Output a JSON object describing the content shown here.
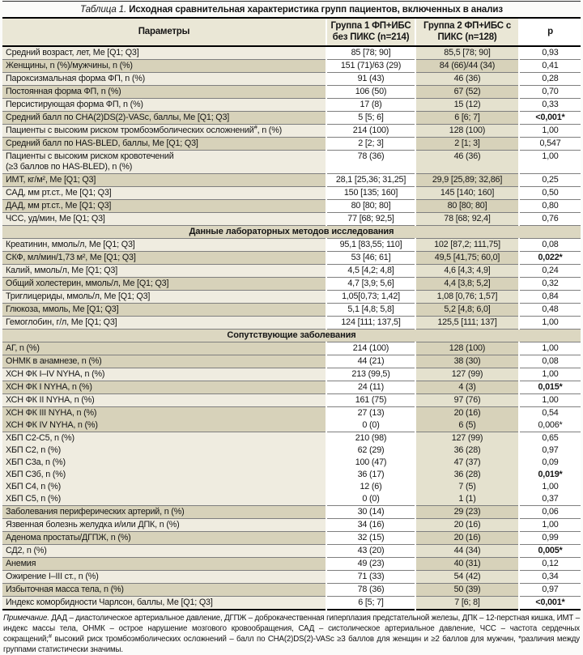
{
  "title": {
    "prefix": "Таблица 1.",
    "text": " Исходная сравнительная характеристика групп пациентов, включенных в анализ"
  },
  "columns": [
    "Параметры",
    "Группа 1 ФП+ИБС без ПИКС (n=214)",
    "Группа 2 ФП+ИБС с ПИКС (n=128)",
    "p"
  ],
  "colors": {
    "stripe_dark": "#d7d2ba",
    "stripe_light": "#efece0",
    "group2_dark": "#d7d2ba",
    "group2_light": "#e4e1ce",
    "header_bg": "#eae7d6",
    "section_bg": "#dcd7c1",
    "rule_gray": "#7f7f7f",
    "rule_black": "#000000"
  },
  "rows": [
    {
      "type": "data",
      "label": "Средний возраст, лет, Ме [Q1; Q3]",
      "g1": "85 [78; 90]",
      "g2": "85,5 [78; 90]",
      "p": "0,93",
      "shade": "light"
    },
    {
      "type": "data",
      "label": "Женщины, n (%)/мужчины, n (%)",
      "g1": "151 (71)/63 (29)",
      "g2": "84 (66)/44 (34)",
      "p": "0,41",
      "shade": "dark"
    },
    {
      "type": "data",
      "label": "Пароксизмальная форма ФП, n (%)",
      "g1": "91 (43)",
      "g2": "46 (36)",
      "p": "0,28",
      "shade": "light"
    },
    {
      "type": "data",
      "label": "Постоянная форма ФП, n (%)",
      "g1": "106 (50)",
      "g2": "67 (52)",
      "p": "0,70",
      "shade": "dark"
    },
    {
      "type": "data",
      "label": "Персистирующая форма ФП, n (%)",
      "g1": "17 (8)",
      "g2": "15 (12)",
      "p": "0,33",
      "shade": "light"
    },
    {
      "type": "data",
      "label": "Средний балл по CHA(2)DS(2)-VASc, баллы, Ме [Q1; Q3]",
      "g1": "5 [5; 6]",
      "g2": "6 [6; 7]",
      "p": "<0,001*",
      "pBold": true,
      "shade": "dark"
    },
    {
      "type": "data",
      "label": "Пациенты с высоким риском тромбоэмболических осложнений",
      "labelSup": "#",
      "labelTail": ", n (%)",
      "g1": "214 (100)",
      "g2": "128 (100)",
      "p": "1,00",
      "shade": "light"
    },
    {
      "type": "data",
      "label": "Средний балл по HAS-BLED, баллы, Ме [Q1; Q3]",
      "g1": "2 [2; 3]",
      "g2": "2 [1; 3]",
      "p": "0,547",
      "shade": "dark"
    },
    {
      "type": "data",
      "label": "Пациенты с высоким риском кровотечений",
      "label2": "(≥3 баллов по HAS-BLED), n (%)",
      "g1": "78 (36)",
      "g2": "46 (36)",
      "p": "1,00",
      "shade": "light",
      "valign": "top"
    },
    {
      "type": "data",
      "label": "ИМТ, кг/м², Ме [Q1; Q3]",
      "g1": "28,1 [25,36; 31,25]",
      "g2": "29,9 [25,89; 32,86]",
      "p": "0,25",
      "shade": "dark"
    },
    {
      "type": "data",
      "label": "САД, мм рт.ст., Ме [Q1; Q3]",
      "g1": "150 [135; 160]",
      "g2": "145 [140; 160]",
      "p": "0,50",
      "shade": "light"
    },
    {
      "type": "data",
      "label": "ДАД, мм рт.ст., Ме [Q1; Q3]",
      "g1": "80 [80; 80]",
      "g2": "80 [80; 80]",
      "p": "0,80",
      "shade": "dark"
    },
    {
      "type": "data",
      "label": "ЧСС, уд/мин, Ме [Q1; Q3]",
      "g1": "77 [68; 92,5]",
      "g2": "78 [68; 92,4]",
      "p": "0,76",
      "shade": "light"
    },
    {
      "type": "section",
      "label": "Данные лабораторных методов исследования"
    },
    {
      "type": "data",
      "label": "Креатинин, ммоль/л, Ме [Q1; Q3]",
      "g1": "95,1 [83,55; 110]",
      "g2": "102 [87,2; 111,75]",
      "p": "0,08",
      "shade": "light"
    },
    {
      "type": "data",
      "label": "СКФ, мл/мин/1,73 м², Ме [Q1; Q3]",
      "g1": "53 [46; 61]",
      "g2": "49,5 [41,75; 60,0]",
      "p": "0,022*",
      "pBold": true,
      "shade": "dark"
    },
    {
      "type": "data",
      "label": "Калий, ммоль/л, Ме [Q1; Q3]",
      "g1": "4,5 [4,2; 4,8]",
      "g2": "4,6 [4,3; 4,9]",
      "p": "0,24",
      "shade": "light"
    },
    {
      "type": "data",
      "label": "Общий холестерин, ммоль/л, Ме [Q1; Q3]",
      "g1": "4,7 [3,9; 5,6]",
      "g2": "4,4 [3,8; 5,2]",
      "p": "0,32",
      "shade": "dark"
    },
    {
      "type": "data",
      "label": "Триглицериды, ммоль/л, Ме [Q1; Q3]",
      "g1": "1,05[0,73; 1,42]",
      "g2": "1,08 [0,76; 1,57]",
      "p": "0,84",
      "shade": "light"
    },
    {
      "type": "data",
      "label": "Глюкоза, ммоль, Ме [Q1; Q3]",
      "g1": "5,1 [4,8; 5,8]",
      "g2": "5,2 [4,8; 6,0]",
      "p": "0,48",
      "shade": "dark"
    },
    {
      "type": "data",
      "label": "Гемоглобин, г/л, Ме [Q1; Q3]",
      "g1": "124 [111; 137,5]",
      "g2": "125,5 [111; 137]",
      "p": "1,00",
      "shade": "light"
    },
    {
      "type": "section",
      "label": "Сопутствующие заболевания"
    },
    {
      "type": "data",
      "label": "АГ, n (%)",
      "g1": "214 (100)",
      "g2": "128 (100)",
      "p": "1,00",
      "shade": "dark"
    },
    {
      "type": "data",
      "label": "ОНМК в анамнезе, n (%)",
      "g1": "44 (21)",
      "g2": "38 (30)",
      "p": "0,08",
      "shade": "dark"
    },
    {
      "type": "data",
      "label": "ХСН ФК I–IV NYHA, n (%)",
      "g1": "213 (99,5)",
      "g2": "127 (99)",
      "p": "1,00",
      "shade": "light"
    },
    {
      "type": "data",
      "label": "ХСН ФК I NYHA, n (%)",
      "g1": "24 (11)",
      "g2": "4 (3)",
      "p": "0,015*",
      "pBold": true,
      "shade": "dark"
    },
    {
      "type": "data",
      "label": "ХСН ФК II NYHA, n (%)",
      "g1": "161 (75)",
      "g2": "97 (76)",
      "p": "1,00",
      "shade": "light"
    },
    {
      "type": "data",
      "label": "ХСН ФК III NYHA, n (%)",
      "g1": "27 (13)",
      "g2": "20 (16)",
      "p": "0,54",
      "shade": "dark",
      "divider": false
    },
    {
      "type": "data",
      "label": "ХСН ФК IV NYHA, n (%)",
      "g1": "0 (0)",
      "g2": "6 (5)",
      "p": "0,006*",
      "shade": "dark"
    },
    {
      "type": "data",
      "label": "ХБП С2-С5, n (%)",
      "g1": "210 (98)",
      "g2": "127 (99)",
      "p": "0,65",
      "shade": "light",
      "divider": false
    },
    {
      "type": "data",
      "label": "ХБП С2, n (%)",
      "g1": "62 (29)",
      "g2": "36 (28)",
      "p": "0,97",
      "shade": "light",
      "divider": false
    },
    {
      "type": "data",
      "label": "ХБП С3а, n (%)",
      "g1": "100 (47)",
      "g2": "47 (37)",
      "p": "0,09",
      "shade": "light",
      "divider": false
    },
    {
      "type": "data",
      "label": "ХБП С3б, n (%)",
      "g1": "36 (17)",
      "g2": "36 (28)",
      "p": "0,019*",
      "pBold": true,
      "shade": "light",
      "divider": false
    },
    {
      "type": "data",
      "label": "ХБП С4, n (%)",
      "g1": "12 (6)",
      "g2": "7 (5)",
      "p": "1,00",
      "shade": "light",
      "divider": false
    },
    {
      "type": "data",
      "label": "ХБП С5, n (%)",
      "g1": "0 (0)",
      "g2": "1 (1)",
      "p": "0,37",
      "shade": "light"
    },
    {
      "type": "data",
      "label": "Заболевания периферических артерий, n (%)",
      "g1": "30 (14)",
      "g2": "29 (23)",
      "p": "0,06",
      "shade": "dark"
    },
    {
      "type": "data",
      "label": "Язвенная болезнь желудка и/или ДПК, n (%)",
      "g1": "34 (16)",
      "g2": "20 (16)",
      "p": "1,00",
      "shade": "light"
    },
    {
      "type": "data",
      "label": "Аденома простаты/ДГПЖ, n (%)",
      "g1": "32 (15)",
      "g2": "20 (16)",
      "p": "0,99",
      "shade": "dark"
    },
    {
      "type": "data",
      "label": "СД2, n (%)",
      "g1": "43 (20)",
      "g2": "44 (34)",
      "p": "0,005*",
      "pBold": true,
      "shade": "light"
    },
    {
      "type": "data",
      "label": "Анемия",
      "g1": "49 (23)",
      "g2": "40 (31)",
      "p": "0,12",
      "shade": "dark"
    },
    {
      "type": "data",
      "label": "Ожирение I–III ст., n (%)",
      "g1": "71 (33)",
      "g2": "54 (42)",
      "p": "0,34",
      "shade": "light"
    },
    {
      "type": "data",
      "label": "Избыточная масса тела, n (%)",
      "g1": "78 (36)",
      "g2": "50 (39)",
      "p": "0,97",
      "shade": "dark"
    },
    {
      "type": "data",
      "label": "Индекс коморбидности Чарлсон, баллы, Ме [Q1; Q3]",
      "g1": "6 [5; 7]",
      "g2": "7 [6; 8]",
      "p": "<0,001*",
      "pBold": true,
      "shade": "light"
    }
  ],
  "footnote": {
    "segments": [
      {
        "style": "italic",
        "text": "Примечание."
      },
      {
        "style": "normal",
        "text": " ДАД – диастолическое артериальное давление, ДГПЖ – доброкачественная гиперплазия предстательной железы, ДПК – 12-перстная кишка, ИМТ – индекс массы тела, ОНМК – острое нарушение мозгового кровообращения, САД – систолическое артериальное давление, ЧСС – частота сердечных сокращений;"
      },
      {
        "style": "sup",
        "text": "#"
      },
      {
        "style": "normal",
        "text": " высокий риск тромбоэмболических осложнений – балл по CHA(2)DS(2)-VASc ≥3 баллов для женщин и ≥2 баллов для мужчин, *различия между группами статистически значимы."
      }
    ]
  }
}
